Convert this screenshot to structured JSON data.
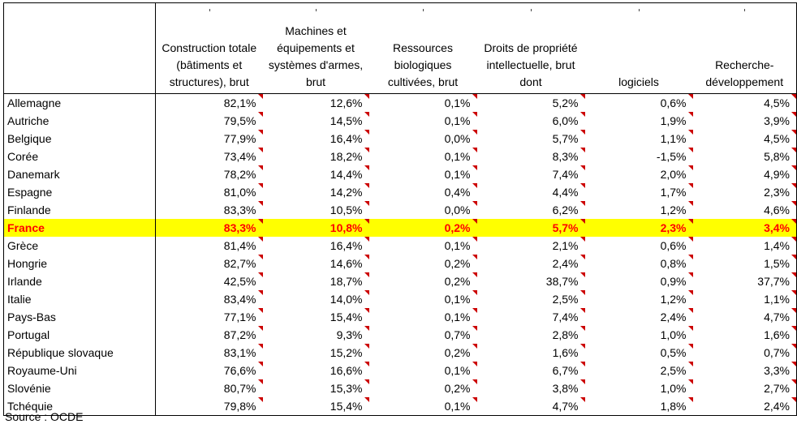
{
  "headers": [
    "",
    "Construction totale (bâtiments et structures), brut",
    "Machines et équipements et systèmes d'armes, brut",
    "Ressources biologiques cultivées, brut",
    "Droits de propriété intellectuelle, brut dont",
    "logiciels",
    "Recherche-développement"
  ],
  "rows": [
    {
      "country": "Allemagne",
      "values": [
        "82,1%",
        "12,6%",
        "0,1%",
        "5,2%",
        "0,6%",
        "4,5%"
      ]
    },
    {
      "country": "Autriche",
      "values": [
        "79,5%",
        "14,5%",
        "0,1%",
        "6,0%",
        "1,9%",
        "3,9%"
      ]
    },
    {
      "country": "Belgique",
      "values": [
        "77,9%",
        "16,4%",
        "0,0%",
        "5,7%",
        "1,1%",
        "4,5%"
      ]
    },
    {
      "country": "Corée",
      "values": [
        "73,4%",
        "18,2%",
        "0,1%",
        "8,3%",
        "-1,5%",
        "5,8%"
      ]
    },
    {
      "country": "Danemark",
      "values": [
        "78,2%",
        "14,4%",
        "0,1%",
        "7,4%",
        "2,0%",
        "4,9%"
      ]
    },
    {
      "country": "Espagne",
      "values": [
        "81,0%",
        "14,2%",
        "0,4%",
        "4,4%",
        "1,7%",
        "2,3%"
      ]
    },
    {
      "country": "Finlande",
      "values": [
        "83,3%",
        "10,5%",
        "0,0%",
        "6,2%",
        "1,2%",
        "4,6%"
      ]
    },
    {
      "country": "France",
      "values": [
        "83,3%",
        "10,8%",
        "0,2%",
        "5,7%",
        "2,3%",
        "3,4%"
      ]
    },
    {
      "country": "Grèce",
      "values": [
        "81,4%",
        "16,4%",
        "0,1%",
        "2,1%",
        "0,6%",
        "1,4%"
      ]
    },
    {
      "country": "Hongrie",
      "values": [
        "82,7%",
        "14,6%",
        "0,2%",
        "2,4%",
        "0,8%",
        "1,5%"
      ]
    },
    {
      "country": "Irlande",
      "values": [
        "42,5%",
        "18,7%",
        "0,2%",
        "38,7%",
        "0,9%",
        "37,7%"
      ]
    },
    {
      "country": "Italie",
      "values": [
        "83,4%",
        "14,0%",
        "0,1%",
        "2,5%",
        "1,2%",
        "1,1%"
      ]
    },
    {
      "country": "Pays-Bas",
      "values": [
        "77,1%",
        "15,4%",
        "0,1%",
        "7,4%",
        "2,4%",
        "4,7%"
      ]
    },
    {
      "country": "Portugal",
      "values": [
        "87,2%",
        "9,3%",
        "0,7%",
        "2,8%",
        "1,0%",
        "1,6%"
      ]
    },
    {
      "country": "République slovaque",
      "values": [
        "83,1%",
        "15,2%",
        "0,2%",
        "1,6%",
        "0,5%",
        "0,7%"
      ]
    },
    {
      "country": "Royaume-Uni",
      "values": [
        "76,6%",
        "16,6%",
        "0,1%",
        "6,7%",
        "2,5%",
        "3,3%"
      ]
    },
    {
      "country": "Slovénie",
      "values": [
        "80,7%",
        "15,3%",
        "0,2%",
        "3,8%",
        "1,0%",
        "2,7%"
      ]
    },
    {
      "country": "Tchéquie",
      "values": [
        "79,8%",
        "15,4%",
        "0,1%",
        "4,7%",
        "1,8%",
        "2,4%"
      ]
    }
  ],
  "highlight_row": "France",
  "colors": {
    "highlight_bg": "#ffff00",
    "highlight_text": "#ff0000",
    "comment_marker": "#cc0000"
  },
  "source": "Source : OCDE"
}
